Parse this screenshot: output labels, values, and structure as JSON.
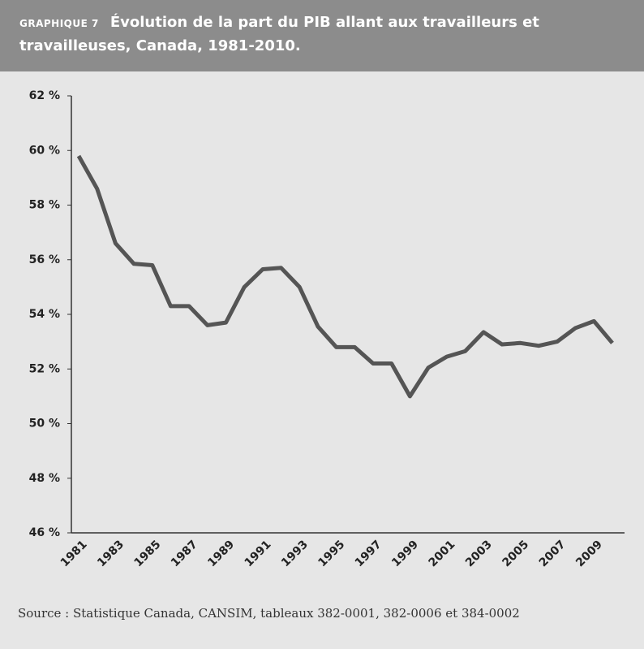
{
  "chart_data": {
    "type": "line",
    "label": "GRAPHIQUE 7",
    "title": "Évolution de la part du PIB allant aux travailleurs et travailleuses, Canada,  1981-2010.",
    "source": "Source : Statistique Canada, CANSIM, tableaux 382-0001, 382-0006 et 384-0002",
    "categories": [
      "1981",
      null,
      "1983",
      null,
      "1985",
      null,
      "1987",
      null,
      "1989",
      null,
      "1991",
      null,
      "1993",
      null,
      "1995",
      null,
      "1997",
      null,
      "1999",
      null,
      "2001",
      null,
      "2003",
      null,
      "2005",
      null,
      "2007",
      null,
      "2009",
      null
    ],
    "values": [
      59.8,
      58.6,
      56.6,
      55.85,
      55.8,
      54.3,
      54.3,
      53.6,
      53.7,
      55.0,
      55.65,
      55.7,
      55.0,
      53.55,
      52.8,
      52.8,
      52.2,
      52.2,
      51.0,
      52.05,
      52.45,
      52.65,
      53.35,
      52.9,
      52.95,
      52.85,
      53.0,
      53.5,
      53.75,
      52.95
    ],
    "color": "#555555",
    "ylim": [
      46,
      62
    ],
    "yticks": [
      {
        "value": 46,
        "label": "46 %"
      },
      {
        "value": 48,
        "label": "48 %"
      },
      {
        "value": 50,
        "label": "50 %"
      },
      {
        "value": 52,
        "label": "52 %"
      },
      {
        "value": 54,
        "label": "54 %"
      },
      {
        "value": 56,
        "label": "56 %"
      },
      {
        "value": 58,
        "label": "58 %"
      },
      {
        "value": 60,
        "label": "60 %"
      },
      {
        "value": 62,
        "label": "62 %"
      }
    ],
    "grid": false
  }
}
